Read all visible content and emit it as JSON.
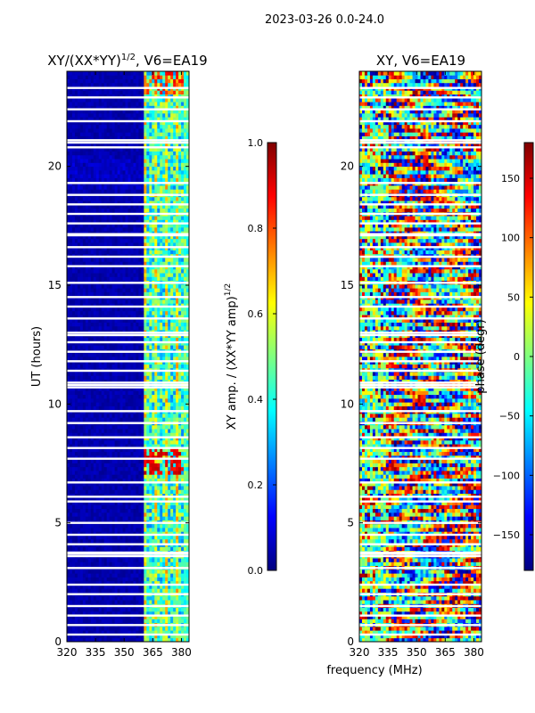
{
  "figure": {
    "suptitle": "2023-03-26 0.0-24.0",
    "xlabel": "frequency (MHz)"
  },
  "colors": {
    "jet": [
      "#00007f",
      "#0000ff",
      "#007fff",
      "#00ffff",
      "#7fff7f",
      "#ffff00",
      "#ff7f00",
      "#ff0000",
      "#7f0000"
    ],
    "gap": "#ffffff",
    "axis": "#000000"
  },
  "chart_data": [
    {
      "type": "heatmap",
      "title": "XY/(XX*YY)^{1/2}, V6=EA19",
      "title_prefix": "XY/(XX*YY)",
      "title_exp": "1/2",
      "title_suffix": ", V6=EA19",
      "xlabel": "frequency (MHz)",
      "ylabel": "UT (hours)",
      "xlim": [
        320,
        384
      ],
      "ylim": [
        0,
        24
      ],
      "xticks": [
        320,
        335,
        350,
        365,
        380
      ],
      "yticks": [
        0,
        5,
        10,
        15,
        20
      ],
      "value_range": [
        0.0,
        1.0
      ],
      "colorbar": {
        "label_prefix": "XY amp. / (XX*YY amp)",
        "label_exp": "1/2",
        "ticks": [
          "0.0",
          "0.2",
          "0.4",
          "0.6",
          "0.8",
          "1.0"
        ],
        "tick_values": [
          0.0,
          0.2,
          0.4,
          0.6,
          0.8,
          1.0
        ]
      },
      "description_bands": [
        {
          "freq_range": [
            320,
            361
          ],
          "value": 0.03
        },
        {
          "freq_range": [
            361,
            384
          ],
          "value": 0.5
        }
      ]
    },
    {
      "type": "heatmap",
      "title": "XY, V6=EA19",
      "xlabel": "frequency (MHz)",
      "ylabel": "",
      "xlim": [
        320,
        384
      ],
      "ylim": [
        0,
        24
      ],
      "xticks": [
        320,
        335,
        350,
        365,
        380
      ],
      "yticks": [
        0,
        5,
        10,
        15,
        20
      ],
      "value_range": [
        -180,
        180
      ],
      "colorbar": {
        "label": "phase (degr)",
        "ticks": [
          "−150",
          "−100",
          "−50",
          "0",
          "50",
          "100",
          "150"
        ],
        "tick_values": [
          -150,
          -100,
          -50,
          0,
          50,
          100,
          150
        ]
      }
    }
  ],
  "gap_hours": [
    0.3,
    0.7,
    1.1,
    1.5,
    2.0,
    2.4,
    3.1,
    3.6,
    3.7,
    3.75,
    4.1,
    4.5,
    5.0,
    5.9,
    6.1,
    6.7,
    7.7,
    8.15,
    8.6,
    9.2,
    9.7,
    10.7,
    10.8,
    10.9,
    11.4,
    11.8,
    12.2,
    12.6,
    12.9,
    13.0,
    13.6,
    14.1,
    14.5,
    15.1,
    15.8,
    16.2,
    16.6,
    17.1,
    17.15,
    17.6,
    18.0,
    18.4,
    18.8,
    19.3,
    20.8,
    21.0,
    21.1,
    21.9,
    22.4,
    22.9,
    23.3
  ]
}
